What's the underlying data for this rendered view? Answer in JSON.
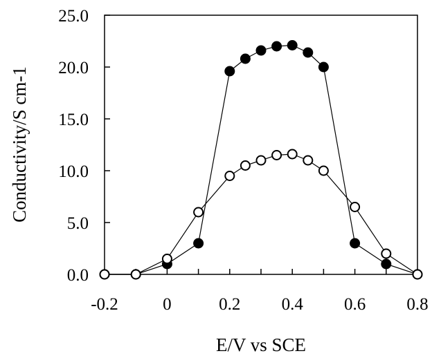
{
  "chart_data": {
    "type": "line",
    "xlabel": "E/V vs SCE",
    "ylabel": "Conductivity/S cm-1",
    "xlim": [
      -0.2,
      0.8
    ],
    "ylim": [
      0,
      25
    ],
    "xticks": [
      "-0.2",
      "-0.1",
      "0",
      "0.1",
      "0.2",
      "0.3",
      "0.4",
      "0.5",
      "0.6",
      "0.7",
      "0.8"
    ],
    "xtick_labels": [
      "-0.2",
      "",
      "0",
      "",
      "0.2",
      "",
      "0.4",
      "",
      "0.6",
      "",
      "0.8"
    ],
    "yticks": [
      "0.0",
      "5.0",
      "10.0",
      "15.0",
      "20.0",
      "25.0"
    ],
    "grid": false,
    "legend": "none",
    "series": [
      {
        "marker": "filled-circle",
        "color": "#000000",
        "x": [
          -0.2,
          -0.1,
          0.0,
          0.1,
          0.2,
          0.25,
          0.3,
          0.35,
          0.4,
          0.45,
          0.5,
          0.6,
          0.7,
          0.8
        ],
        "y": [
          0.0,
          0.0,
          1.0,
          3.0,
          19.6,
          20.8,
          21.6,
          22.0,
          22.1,
          21.4,
          20.0,
          3.0,
          1.0,
          0.0
        ]
      },
      {
        "marker": "open-circle",
        "color": "#000000",
        "x": [
          -0.2,
          -0.1,
          0.0,
          0.1,
          0.2,
          0.25,
          0.3,
          0.35,
          0.4,
          0.45,
          0.5,
          0.6,
          0.7,
          0.8
        ],
        "y": [
          0.0,
          0.0,
          1.5,
          6.0,
          9.5,
          10.5,
          11.0,
          11.5,
          11.6,
          11.0,
          10.0,
          6.5,
          2.0,
          0.0
        ]
      }
    ]
  }
}
